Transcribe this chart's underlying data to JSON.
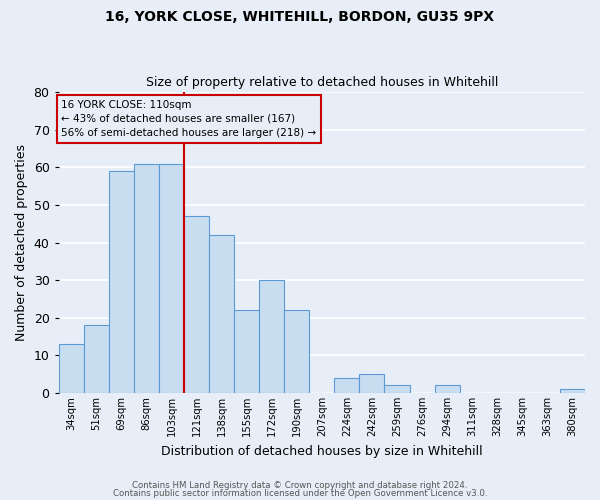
{
  "title1": "16, YORK CLOSE, WHITEHILL, BORDON, GU35 9PX",
  "title2": "Size of property relative to detached houses in Whitehill",
  "xlabel": "Distribution of detached houses by size in Whitehill",
  "ylabel": "Number of detached properties",
  "bar_labels": [
    "34sqm",
    "51sqm",
    "69sqm",
    "86sqm",
    "103sqm",
    "121sqm",
    "138sqm",
    "155sqm",
    "172sqm",
    "190sqm",
    "207sqm",
    "224sqm",
    "242sqm",
    "259sqm",
    "276sqm",
    "294sqm",
    "311sqm",
    "328sqm",
    "345sqm",
    "363sqm",
    "380sqm"
  ],
  "bar_values": [
    13,
    18,
    59,
    61,
    61,
    47,
    42,
    22,
    30,
    22,
    0,
    4,
    5,
    2,
    0,
    2,
    0,
    0,
    0,
    0,
    1
  ],
  "bar_color": "#c9ddf0",
  "bar_edge_color": "#5b9bd5",
  "ylim": [
    0,
    80
  ],
  "yticks": [
    0,
    10,
    20,
    30,
    40,
    50,
    60,
    70,
    80
  ],
  "vline_x_index": 4.5,
  "vline_color": "#cc0000",
  "annotation_title": "16 YORK CLOSE: 110sqm",
  "annotation_line1": "← 43% of detached houses are smaller (167)",
  "annotation_line2": "56% of semi-detached houses are larger (218) →",
  "annotation_box_color": "#cc0000",
  "footer1": "Contains HM Land Registry data © Crown copyright and database right 2024.",
  "footer2": "Contains public sector information licensed under the Open Government Licence v3.0.",
  "background_color": "#e8eef7",
  "grid_color": "#ffffff"
}
